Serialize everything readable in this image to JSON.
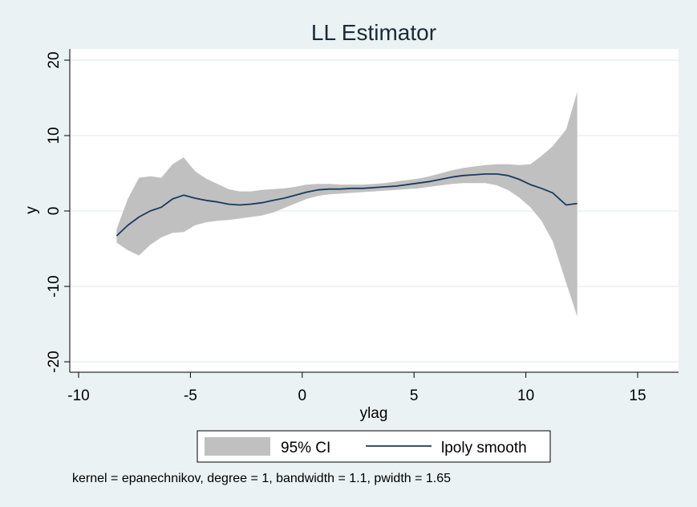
{
  "chart_data": {
    "type": "line",
    "title": "LL Estimator",
    "xlabel": "ylag",
    "ylabel": "y",
    "xlim": [
      -10,
      17
    ],
    "ylim": [
      -20,
      20
    ],
    "xticks": [
      -10,
      -5,
      0,
      5,
      10,
      15
    ],
    "yticks": [
      -20,
      -10,
      0,
      10,
      20
    ],
    "grid": true,
    "legend_position": "bottom",
    "note": "kernel = epanechnikov, degree = 1, bandwidth = 1.1, pwidth = 1.65",
    "series": [
      {
        "name": "95% CI",
        "kind": "band",
        "color": "#c0c0c0",
        "x": [
          -8.3,
          -7.8,
          -7.3,
          -6.8,
          -6.3,
          -5.8,
          -5.3,
          -4.8,
          -4.3,
          -3.8,
          -3.3,
          -2.8,
          -2.3,
          -1.8,
          -1.3,
          -0.8,
          -0.3,
          0.2,
          0.7,
          1.2,
          1.7,
          2.2,
          2.7,
          3.2,
          3.7,
          4.2,
          4.7,
          5.2,
          5.7,
          6.2,
          6.7,
          7.2,
          7.7,
          8.2,
          8.7,
          9.2,
          9.7,
          10.2,
          10.7,
          11.2,
          11.8,
          12.3
        ],
        "lower": [
          -4.2,
          -5.2,
          -5.9,
          -4.5,
          -3.5,
          -2.9,
          -2.8,
          -1.9,
          -1.5,
          -1.3,
          -1.2,
          -1.0,
          -0.8,
          -0.6,
          -0.2,
          0.4,
          1.0,
          1.6,
          2.0,
          2.2,
          2.3,
          2.4,
          2.5,
          2.6,
          2.7,
          2.8,
          2.9,
          3.0,
          3.2,
          3.4,
          3.6,
          3.7,
          3.7,
          3.7,
          3.4,
          2.8,
          1.8,
          0.5,
          -1.3,
          -4.0,
          -9.5,
          -14.0
        ],
        "upper": [
          -2.4,
          1.6,
          4.4,
          4.6,
          4.4,
          6.2,
          7.1,
          5.3,
          4.3,
          3.6,
          2.9,
          2.6,
          2.6,
          2.8,
          2.9,
          3.0,
          3.2,
          3.5,
          3.6,
          3.6,
          3.5,
          3.5,
          3.5,
          3.6,
          3.7,
          3.9,
          4.1,
          4.3,
          4.6,
          5.0,
          5.4,
          5.7,
          5.9,
          6.1,
          6.2,
          6.2,
          6.1,
          6.2,
          7.3,
          8.6,
          10.8,
          15.8
        ]
      },
      {
        "name": "lpoly smooth",
        "kind": "line",
        "color": "#1a3a5c",
        "x": [
          -8.3,
          -7.8,
          -7.3,
          -6.8,
          -6.3,
          -5.8,
          -5.3,
          -4.8,
          -4.3,
          -3.8,
          -3.3,
          -2.8,
          -2.3,
          -1.8,
          -1.3,
          -0.8,
          -0.3,
          0.2,
          0.7,
          1.2,
          1.7,
          2.2,
          2.7,
          3.2,
          3.7,
          4.2,
          4.7,
          5.2,
          5.7,
          6.2,
          6.7,
          7.2,
          7.7,
          8.2,
          8.7,
          9.2,
          9.7,
          10.2,
          10.7,
          11.2,
          11.8,
          12.3
        ],
        "y": [
          -3.3,
          -1.9,
          -0.8,
          0.0,
          0.5,
          1.6,
          2.1,
          1.7,
          1.4,
          1.2,
          0.9,
          0.8,
          0.9,
          1.1,
          1.4,
          1.7,
          2.1,
          2.5,
          2.8,
          2.9,
          2.9,
          3.0,
          3.0,
          3.1,
          3.2,
          3.3,
          3.5,
          3.7,
          3.9,
          4.2,
          4.5,
          4.7,
          4.8,
          4.9,
          4.9,
          4.7,
          4.2,
          3.5,
          3.0,
          2.4,
          0.8,
          1.0
        ]
      }
    ]
  }
}
